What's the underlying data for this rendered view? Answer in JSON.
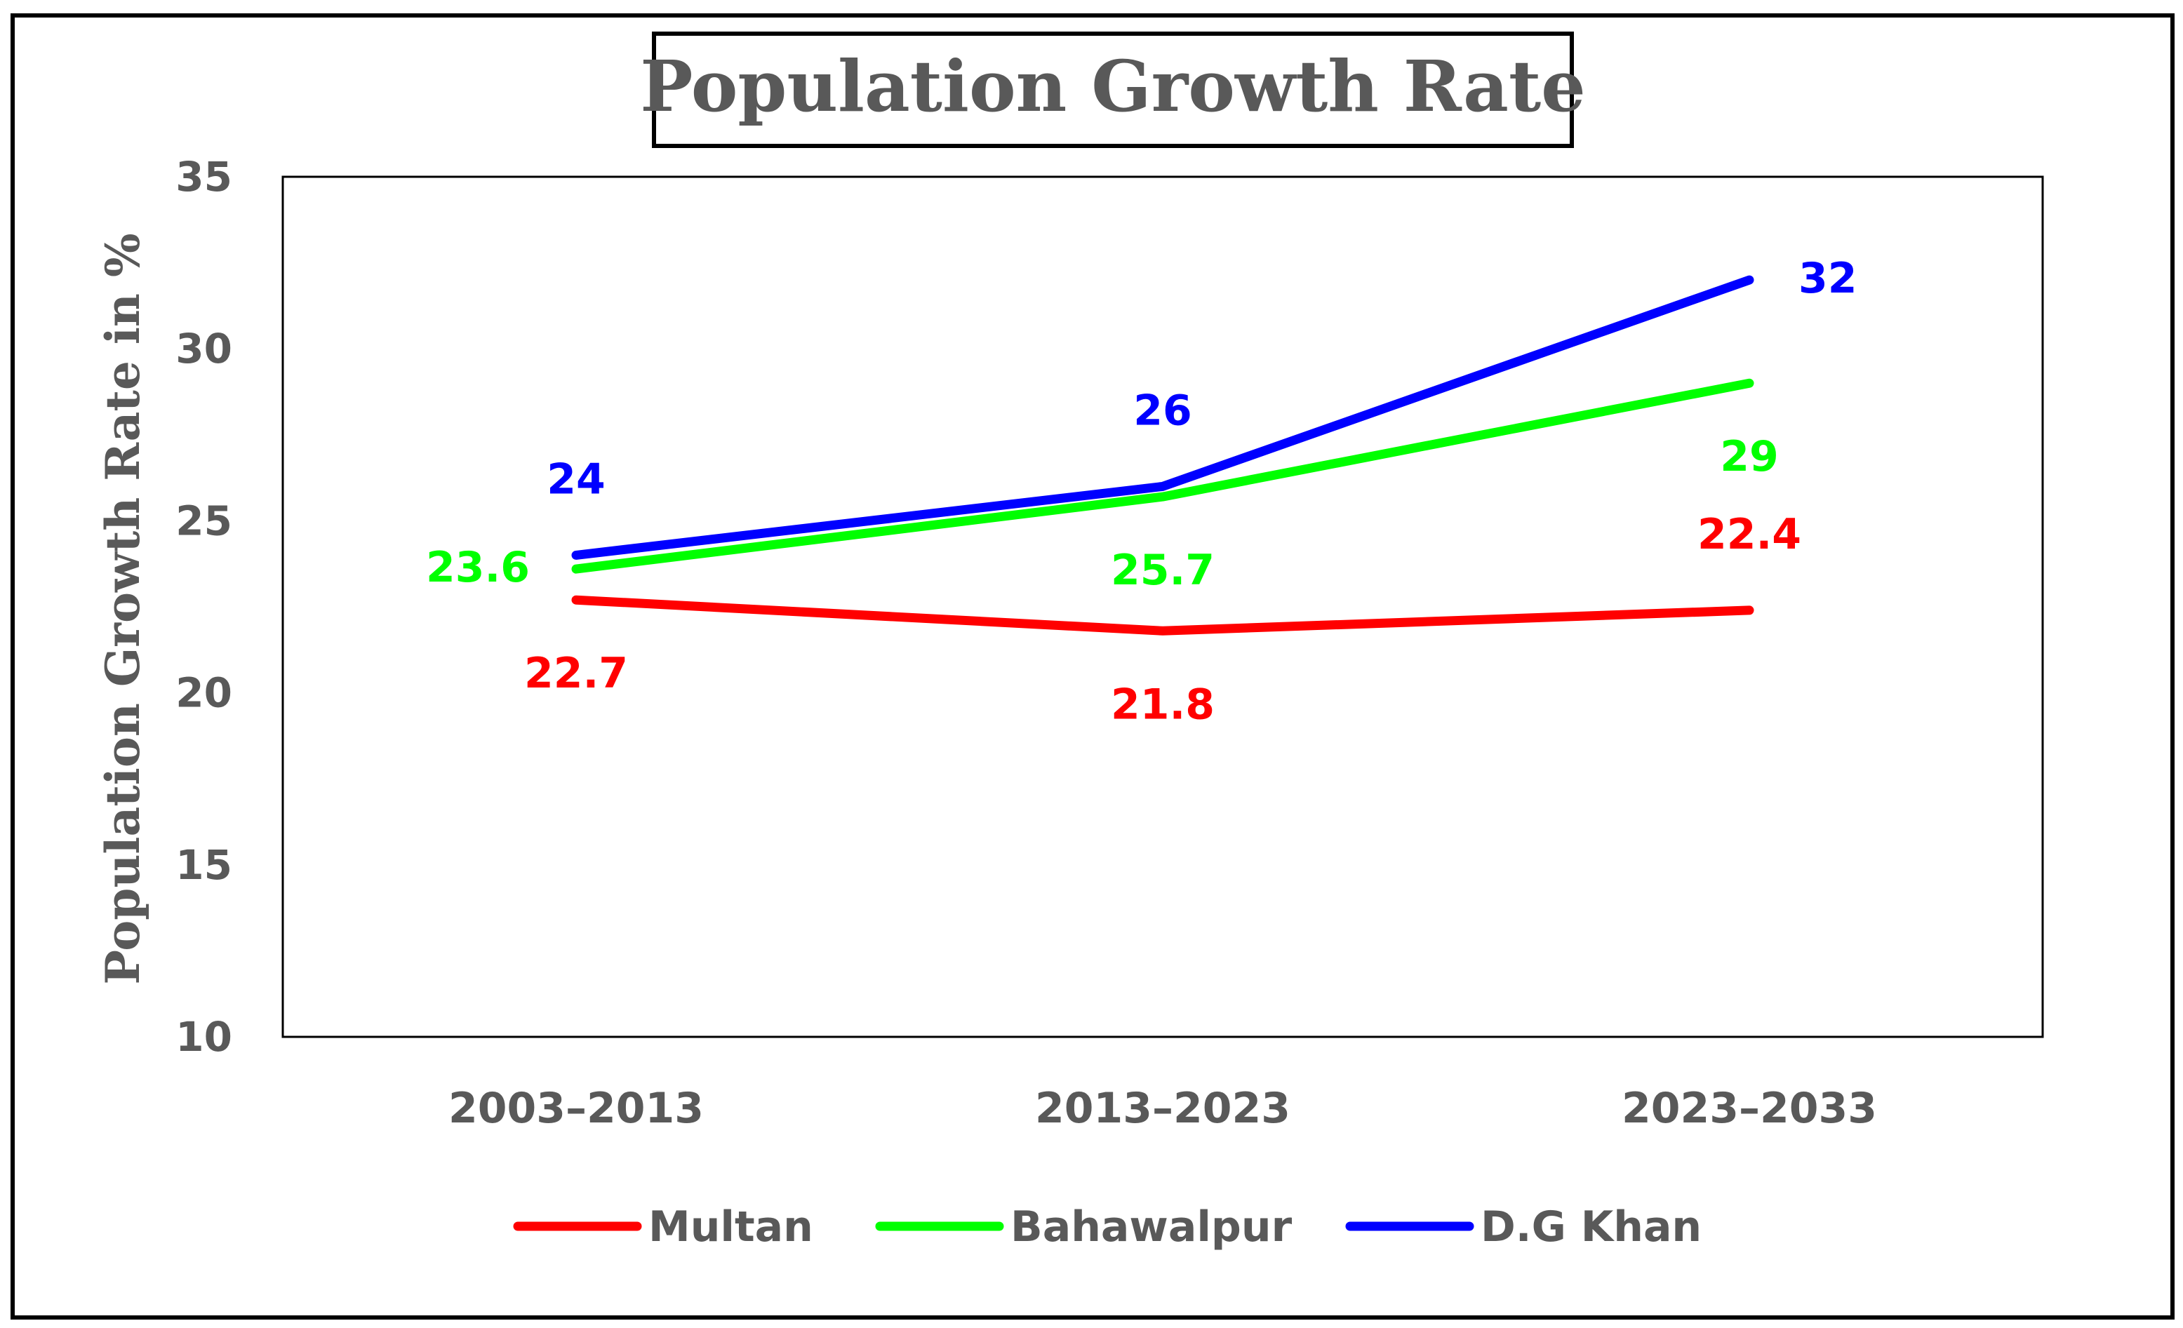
{
  "chart_data": {
    "type": "line",
    "title": "Population Growth Rate",
    "xlabel": "",
    "ylabel": "Population Growth Rate in %",
    "categories": [
      "2003–2013",
      "2013–2023",
      "2023–2033"
    ],
    "ylim": [
      10,
      35
    ],
    "yticks": [
      "10",
      "15",
      "20",
      "25",
      "30",
      "35"
    ],
    "grid": false,
    "legend_position": "bottom",
    "series": [
      {
        "name": "Multan",
        "color": "#ff0000",
        "values": [
          22.7,
          21.8,
          22.4
        ],
        "labels": [
          "22.7",
          "21.8",
          "22.4"
        ],
        "label_placement": [
          "below",
          "below",
          "above"
        ]
      },
      {
        "name": "Bahawalpur",
        "color": "#00ff00",
        "values": [
          23.6,
          25.7,
          29
        ],
        "labels": [
          "23.6",
          "25.7",
          "29"
        ],
        "label_placement": [
          "left",
          "below",
          "below"
        ]
      },
      {
        "name": "D.G Khan",
        "color": "#0000ff",
        "values": [
          24,
          26,
          32
        ],
        "labels": [
          "24",
          "26",
          "32"
        ],
        "label_placement": [
          "above",
          "above",
          "right"
        ]
      }
    ],
    "colors": {
      "text": "#595959",
      "frame": "#000000"
    }
  }
}
